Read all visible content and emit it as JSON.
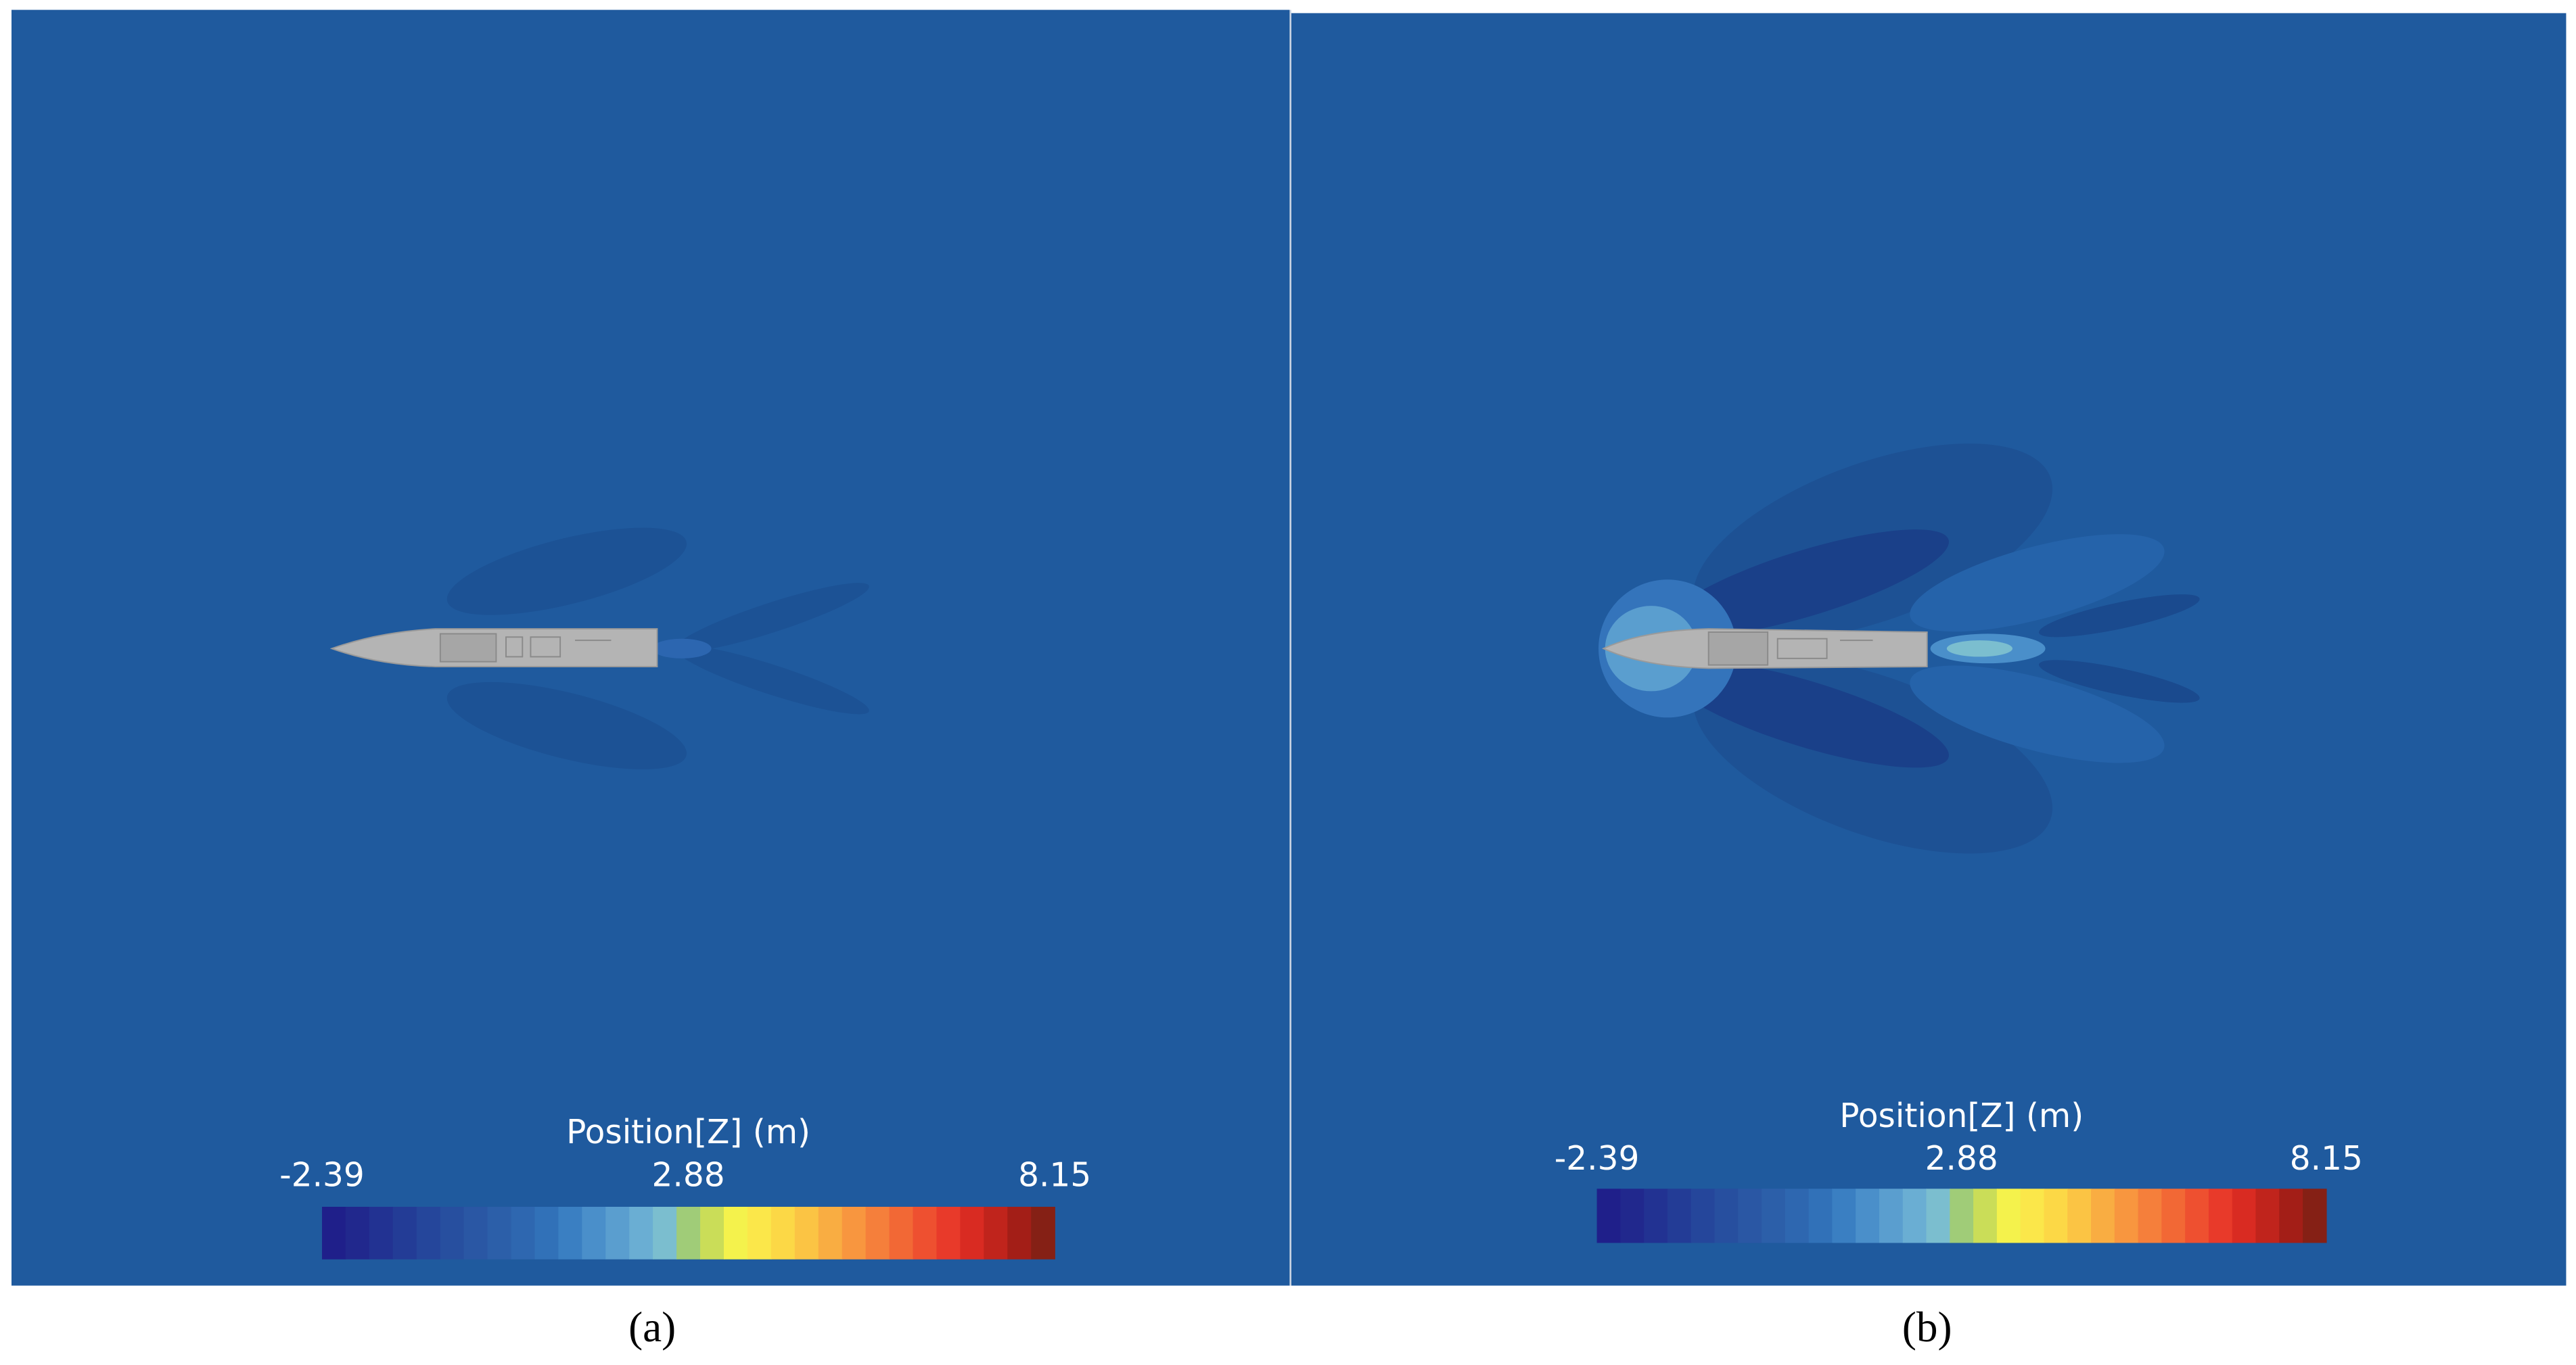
{
  "chart_data": [
    {
      "type": "contour",
      "label": "(a)",
      "colorbar": {
        "title": "Position[Z] (m)",
        "lim": [
          -2.39,
          8.15
        ],
        "ticks": [
          -2.39,
          2.88,
          8.15
        ],
        "colors": [
          "#1f1f8a",
          "#21288d",
          "#223292",
          "#233c96",
          "#25469b",
          "#274f9f",
          "#2a57a4",
          "#2c5fa9",
          "#2e67b0",
          "#3171b8",
          "#3a7fc2",
          "#4a8fca",
          "#5a9ecf",
          "#6aaed3",
          "#7bbecf",
          "#a0cc78",
          "#cadd58",
          "#f4f24c",
          "#fbe74a",
          "#fcd846",
          "#fbc444",
          "#f9ad42",
          "#f8963f",
          "#f57f3b",
          "#f26835",
          "#ee5030",
          "#e83a2a",
          "#d92b22",
          "#c0241c",
          "#a31e17",
          "#852015"
        ]
      }
    },
    {
      "type": "contour",
      "label": "(b)",
      "colorbar": {
        "title": "Position[Z] (m)",
        "lim": [
          -2.39,
          8.15
        ],
        "ticks": [
          -2.39,
          2.88,
          8.15
        ],
        "colors": [
          "#1f1f8a",
          "#21288d",
          "#223292",
          "#233c96",
          "#25469b",
          "#274f9f",
          "#2a57a4",
          "#2c5fa9",
          "#2e67b0",
          "#3171b8",
          "#3a7fc2",
          "#4a8fca",
          "#5a9ecf",
          "#6aaed3",
          "#7bbecf",
          "#a0cc78",
          "#cadd58",
          "#f4f24c",
          "#fbe74a",
          "#fcd846",
          "#fbc444",
          "#f9ad42",
          "#f8963f",
          "#f57f3b",
          "#f26835",
          "#ee5030",
          "#e83a2a",
          "#d92b22",
          "#c0241c",
          "#a31e17",
          "#852015"
        ]
      }
    }
  ]
}
